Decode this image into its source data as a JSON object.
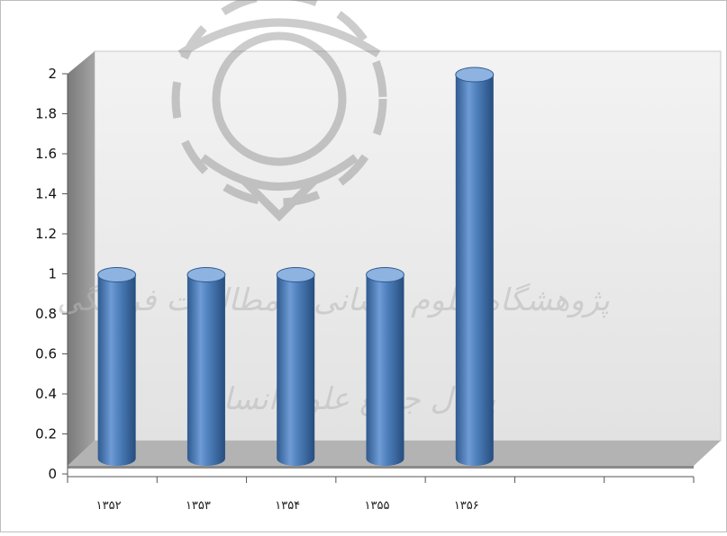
{
  "watermark": {
    "line1": "پژوهشگاه علوم انسانی و مطالعات فرهنگی",
    "line2": "پرتال جامع علوم انسانی"
  },
  "chart_data": {
    "type": "bar",
    "style": "3d-cylinder",
    "title": "",
    "xlabel": "",
    "ylabel": "",
    "categories": [
      "۱۳۵۲",
      "۱۳۵۳",
      "۱۳۵۴",
      "۱۳۵۵",
      "۱۳۵۶"
    ],
    "values": [
      1,
      1,
      1,
      1,
      2
    ],
    "ylim": [
      0,
      2
    ],
    "yticks": [
      "0",
      "0.2",
      "0.4",
      "0.6",
      "0.8",
      "1",
      "1.2",
      "1.4",
      "1.6",
      "1.8",
      "2"
    ],
    "x_slots": 7,
    "grid": false,
    "legend": "none",
    "colors": {
      "bar": "#4f81bd",
      "bar_dark": "#2e5a8f",
      "bar_light": "#8fb3e0",
      "wall": "#ececec",
      "floor": "#a8a8a8",
      "side_wall": "#8c8c8c"
    }
  }
}
